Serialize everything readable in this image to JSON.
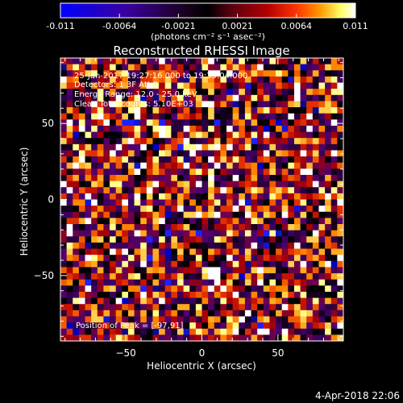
{
  "chart_data": {
    "type": "heatmap",
    "title": "Reconstructed RHESSI Image",
    "xlabel": "Heliocentric X (arcsec)",
    "ylabel": "Heliocentric Y (arcsec)",
    "xlim": [
      -93,
      93
    ],
    "ylim": [
      -93,
      93
    ],
    "xticks": [
      -50,
      0,
      50
    ],
    "yticks": [
      -50,
      0,
      50
    ],
    "grid": false,
    "colorbar": {
      "min": -0.011,
      "max": 0.011,
      "ticks": [
        "-0.011",
        "-0.0064",
        "-0.0021",
        "0.0021",
        "0.0064",
        "0.011"
      ],
      "unit_label": "(photons cm⁻² s⁻¹ asec⁻²)",
      "colors": [
        "#0000ff",
        "#3a00a0",
        "#1a0020",
        "#000000",
        "#5a0010",
        "#b00000",
        "#ff3300",
        "#ff9900",
        "#ffff66",
        "#ffffff"
      ]
    },
    "annotations": [
      "25-Jan-2017 19:27:16.000 to 19:35:04.000",
      "Detectors: 1 3F  Att 0",
      "Energy Range: 12.0 - 25.0 keV",
      "Clean     Total counts: 5.10E+03"
    ],
    "peak_label": "Position of Peak = [-97,91]",
    "grid_size": [
      46,
      46
    ],
    "noise_seed": 20170125
  },
  "footer": {
    "timestamp": "4-Apr-2018 22:06"
  }
}
